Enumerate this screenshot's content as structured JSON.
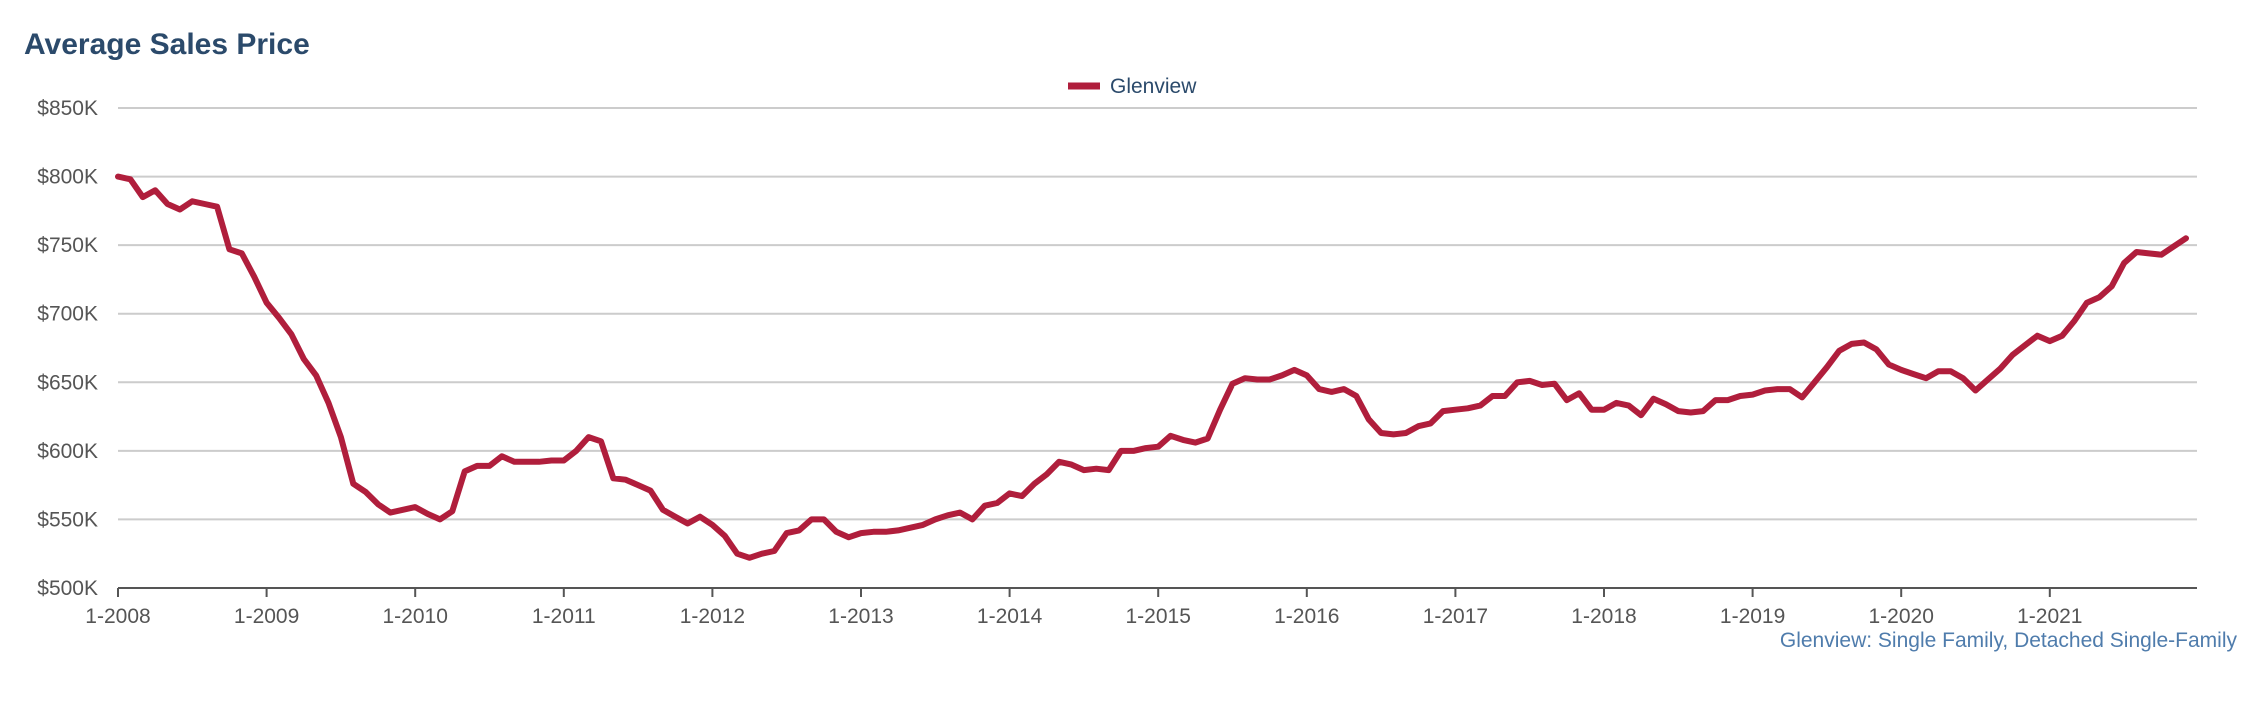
{
  "chart_data": {
    "type": "line",
    "title": "Average Sales Price",
    "footnote": "Glenview: Single Family, Detached Single-Family",
    "legend": {
      "position": "top-center"
    },
    "grid": true,
    "ylim": [
      500000,
      850000
    ],
    "y_ticks": [
      {
        "value": 500000,
        "label": "$500K"
      },
      {
        "value": 550000,
        "label": "$550K"
      },
      {
        "value": 600000,
        "label": "$600K"
      },
      {
        "value": 650000,
        "label": "$650K"
      },
      {
        "value": 700000,
        "label": "$700K"
      },
      {
        "value": 750000,
        "label": "$750K"
      },
      {
        "value": 800000,
        "label": "$800K"
      },
      {
        "value": 850000,
        "label": "$850K"
      }
    ],
    "x_ticks": [
      "1-2008",
      "1-2009",
      "1-2010",
      "1-2011",
      "1-2012",
      "1-2013",
      "1-2014",
      "1-2015",
      "1-2016",
      "1-2017",
      "1-2018",
      "1-2019",
      "1-2020",
      "1-2021"
    ],
    "x_start": "1-2008",
    "x_end": "12-2021",
    "series": [
      {
        "name": "Glenview",
        "color": "#b01e3c",
        "values": [
          800000,
          798000,
          785000,
          790000,
          780000,
          776000,
          782000,
          780000,
          778000,
          747000,
          744000,
          727000,
          708000,
          697000,
          685000,
          667000,
          655000,
          635000,
          610000,
          576000,
          570000,
          561000,
          555000,
          557000,
          559000,
          554000,
          550000,
          556000,
          585000,
          589000,
          589000,
          596000,
          592000,
          592000,
          592000,
          593000,
          593000,
          600000,
          610000,
          607000,
          580000,
          579000,
          575000,
          571000,
          557000,
          552000,
          547000,
          552000,
          546000,
          538000,
          525000,
          522000,
          525000,
          527000,
          540000,
          542000,
          550000,
          550000,
          541000,
          537000,
          540000,
          541000,
          541000,
          542000,
          544000,
          546000,
          550000,
          553000,
          555000,
          550000,
          560000,
          562000,
          569000,
          567000,
          576000,
          583000,
          592000,
          590000,
          586000,
          587000,
          586000,
          600000,
          600000,
          602000,
          603000,
          611000,
          608000,
          606000,
          609000,
          630000,
          649000,
          653000,
          652000,
          652000,
          655000,
          659000,
          655000,
          645000,
          643000,
          645000,
          640000,
          623000,
          613000,
          612000,
          613000,
          618000,
          620000,
          629000,
          630000,
          631000,
          633000,
          640000,
          640000,
          650000,
          651000,
          648000,
          649000,
          637000,
          642000,
          630000,
          630000,
          635000,
          633000,
          626000,
          638000,
          634000,
          629000,
          628000,
          629000,
          637000,
          637000,
          640000,
          641000,
          644000,
          645000,
          645000,
          639000,
          650000,
          661000,
          673000,
          678000,
          679000,
          674000,
          663000,
          659000,
          656000,
          653000,
          658000,
          658000,
          653000,
          644000,
          652000,
          660000,
          670000,
          677000,
          684000,
          680000,
          684000,
          695000,
          708000,
          712000,
          720000,
          737000,
          745000,
          744000,
          743000,
          749000,
          755000
        ]
      }
    ]
  }
}
